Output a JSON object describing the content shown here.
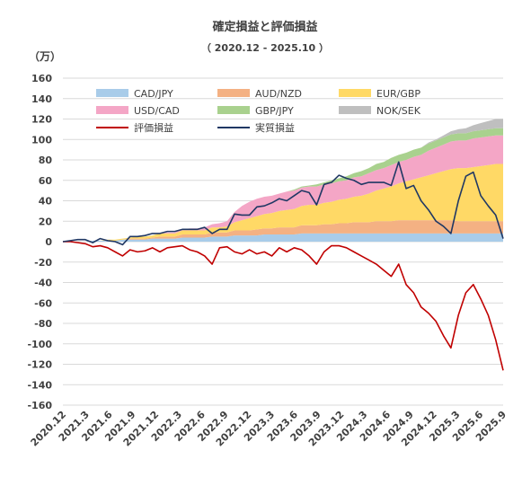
{
  "chart_data": {
    "type": "area",
    "title": "確定損益と評価損益",
    "subtitle": "（ 2020.12 - 2025.10 ）",
    "y_unit_label": "（万）",
    "ylim": [
      -160,
      160
    ],
    "y_ticks": [
      160,
      140,
      120,
      100,
      80,
      60,
      40,
      20,
      0,
      -20,
      -40,
      -60,
      -80,
      -100,
      -120,
      -140,
      -160
    ],
    "x_ticks": [
      "2020.12",
      "2021.3",
      "2021.6",
      "2021.9",
      "2021.12",
      "2022.3",
      "2022.6",
      "2022.9",
      "2022.12",
      "2023.3",
      "2023.6",
      "2023.9",
      "2023.12",
      "2024.3",
      "2024.6",
      "2024.9",
      "2024.12",
      "2025.3",
      "2025.6",
      "2025.9"
    ],
    "grid": true,
    "legend_position": "top",
    "x": [
      0,
      1,
      2,
      3,
      4,
      5,
      6,
      7,
      8,
      9,
      10,
      11,
      12,
      13,
      14,
      15,
      16,
      17,
      18,
      19,
      20,
      21,
      22,
      23,
      24,
      25,
      26,
      27,
      28,
      29,
      30,
      31,
      32,
      33,
      34,
      35,
      36,
      37,
      38,
      39,
      40,
      41,
      42,
      43,
      44,
      45,
      46,
      47,
      48,
      49,
      50,
      51,
      52,
      53,
      54,
      55,
      56,
      57,
      58,
      59
    ],
    "stacked_series": [
      {
        "name": "CAD/JPY",
        "color": "#a9cce9",
        "values": [
          0,
          0,
          0,
          0,
          1,
          1,
          1,
          1,
          2,
          2,
          2,
          2,
          3,
          3,
          3,
          3,
          4,
          4,
          4,
          4,
          5,
          5,
          5,
          6,
          6,
          6,
          6,
          7,
          7,
          7,
          7,
          7,
          8,
          8,
          8,
          8,
          8,
          8,
          8,
          8,
          8,
          8,
          8,
          8,
          8,
          8,
          8,
          8,
          8,
          8,
          8,
          8,
          8,
          8,
          8,
          8,
          8,
          8,
          8,
          8
        ]
      },
      {
        "name": "AUD/NZD",
        "color": "#f4b183",
        "values": [
          0,
          0,
          0,
          0,
          0,
          0,
          0,
          0,
          0,
          1,
          1,
          1,
          1,
          2,
          2,
          2,
          3,
          3,
          3,
          3,
          4,
          4,
          4,
          5,
          5,
          5,
          6,
          6,
          6,
          7,
          7,
          7,
          8,
          8,
          8,
          9,
          9,
          10,
          10,
          11,
          11,
          11,
          12,
          12,
          12,
          13,
          13,
          13,
          13,
          13,
          13,
          13,
          13,
          12,
          12,
          12,
          12,
          12,
          12,
          12
        ]
      },
      {
        "name": "EUR/GBP",
        "color": "#ffd966",
        "values": [
          0,
          0,
          0,
          0,
          0,
          0,
          1,
          1,
          1,
          1,
          2,
          2,
          2,
          3,
          3,
          3,
          4,
          4,
          4,
          4,
          5,
          5,
          6,
          8,
          10,
          12,
          13,
          14,
          15,
          16,
          17,
          18,
          19,
          20,
          20,
          21,
          22,
          23,
          24,
          25,
          26,
          28,
          30,
          32,
          34,
          36,
          38,
          40,
          42,
          44,
          46,
          48,
          50,
          52,
          52,
          53,
          54,
          55,
          56,
          56
        ]
      },
      {
        "name": "USD/CAD",
        "color": "#f4a6c6",
        "values": [
          0,
          0,
          0,
          0,
          0,
          0,
          0,
          0,
          0,
          0,
          0,
          0,
          0,
          0,
          1,
          1,
          1,
          2,
          2,
          3,
          3,
          4,
          5,
          10,
          14,
          16,
          17,
          17,
          17,
          17,
          18,
          18,
          18,
          18,
          18,
          18,
          18,
          18,
          18,
          19,
          19,
          20,
          20,
          20,
          21,
          21,
          21,
          22,
          22,
          24,
          25,
          26,
          27,
          27,
          27,
          28,
          28,
          28,
          28,
          28
        ]
      },
      {
        "name": "GBP/JPY",
        "color": "#a9d18e",
        "values": [
          0,
          0,
          0,
          0,
          0,
          0,
          0,
          0,
          0,
          0,
          0,
          0,
          0,
          0,
          0,
          0,
          0,
          0,
          0,
          0,
          0,
          0,
          0,
          0,
          0,
          0,
          0,
          0,
          0,
          0,
          0,
          1,
          1,
          1,
          2,
          2,
          3,
          3,
          4,
          4,
          5,
          5,
          6,
          6,
          7,
          7,
          7,
          7,
          7,
          7,
          7,
          7,
          7,
          7,
          7,
          7,
          7,
          7,
          7,
          7
        ]
      },
      {
        "name": "NOK/SEK",
        "color": "#bfbfbf",
        "values": [
          0,
          0,
          0,
          0,
          0,
          0,
          0,
          0,
          0,
          0,
          0,
          0,
          0,
          0,
          0,
          0,
          0,
          0,
          0,
          0,
          0,
          0,
          0,
          0,
          0,
          0,
          0,
          0,
          0,
          0,
          0,
          0,
          0,
          0,
          0,
          0,
          0,
          0,
          0,
          0,
          0,
          0,
          0,
          0,
          0,
          0,
          0,
          0,
          0,
          1,
          1,
          2,
          3,
          4,
          5,
          6,
          7,
          8,
          9,
          9
        ]
      }
    ],
    "line_series": [
      {
        "name": "評価損益",
        "color": "#c00000",
        "values": [
          0,
          0,
          -1,
          -2,
          -5,
          -4,
          -6,
          -10,
          -14,
          -8,
          -10,
          -9,
          -6,
          -10,
          -6,
          -5,
          -4,
          -8,
          -10,
          -14,
          -22,
          -6,
          -5,
          -10,
          -12,
          -8,
          -12,
          -10,
          -14,
          -6,
          -10,
          -6,
          -8,
          -14,
          -22,
          -10,
          -4,
          -4,
          -6,
          -10,
          -14,
          -18,
          -22,
          -28,
          -34,
          -22,
          -42,
          -50,
          -64,
          -70,
          -78,
          -92,
          -104,
          -72,
          -50,
          -42,
          -56,
          -72,
          -96,
          -126
        ]
      },
      {
        "name": "実質損益",
        "color": "#203864",
        "values": [
          0,
          1,
          2,
          2,
          -1,
          3,
          1,
          0,
          -3,
          5,
          5,
          6,
          8,
          8,
          10,
          10,
          12,
          12,
          12,
          14,
          8,
          12,
          12,
          27,
          26,
          26,
          34,
          35,
          38,
          42,
          40,
          45,
          50,
          48,
          36,
          56,
          58,
          65,
          62,
          60,
          56,
          58,
          58,
          58,
          55,
          78,
          52,
          55,
          40,
          31,
          20,
          15,
          8,
          40,
          64,
          68,
          45,
          35,
          26,
          3
        ]
      }
    ]
  }
}
